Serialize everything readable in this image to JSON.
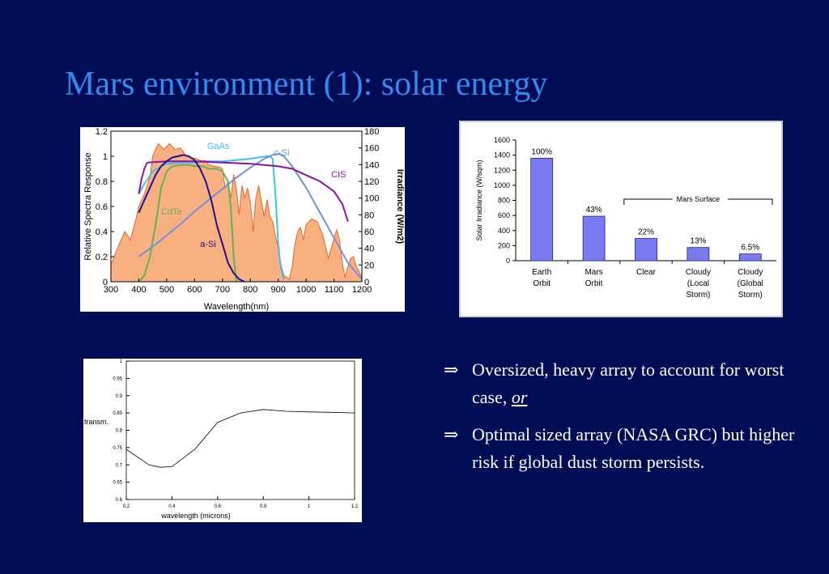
{
  "title": "Mars environment (1): solar energy",
  "bullets": [
    {
      "symbol": "⇒",
      "text": "Oversized, heavy array to account for worst case, ",
      "emphasis": "or"
    },
    {
      "symbol": "⇒",
      "text": "Optimal sized array (NASA GRC) but higher risk if global dust storm persists.",
      "emphasis": ""
    }
  ],
  "chart_data": [
    {
      "type": "line",
      "xlabel": "Wavelength(nm)",
      "ylabel": "Relative Spectra Response",
      "y2label": "Irradiance (W/m2)",
      "xlim": [
        300,
        1200
      ],
      "ylim": [
        0,
        1.2
      ],
      "y2lim": [
        0,
        180
      ],
      "xticks": [
        "300",
        "400",
        "500",
        "600",
        "700",
        "800",
        "900",
        "1000",
        "1100",
        "1200"
      ],
      "yticks": [
        "0",
        "0.2",
        "0.4",
        "0.6",
        "0.8",
        "1",
        "1.2"
      ],
      "y2ticks": [
        "0",
        "20",
        "40",
        "60",
        "80",
        "100",
        "120",
        "140",
        "160",
        "180"
      ],
      "fill_color": "#f8b080",
      "irradiance": {
        "x": [
          300,
          330,
          350,
          370,
          390,
          400,
          420,
          440,
          450,
          460,
          470,
          490,
          510,
          530,
          550,
          570,
          590,
          600,
          620,
          640,
          650,
          670,
          690,
          700,
          710,
          720,
          730,
          740,
          750,
          760,
          770,
          780,
          790,
          800,
          810,
          820,
          830,
          840,
          850,
          860,
          870,
          880,
          890,
          900,
          910,
          920,
          930,
          940,
          950,
          960,
          970,
          980,
          990,
          1000,
          1020,
          1040,
          1060,
          1080,
          1100,
          1110,
          1120,
          1130,
          1140,
          1150,
          1160,
          1170,
          1180,
          1190,
          1200
        ],
        "y": [
          20,
          45,
          60,
          50,
          75,
          90,
          105,
          125,
          150,
          158,
          165,
          158,
          165,
          158,
          160,
          150,
          148,
          148,
          145,
          145,
          140,
          138,
          137,
          135,
          112,
          120,
          100,
          128,
          110,
          80,
          115,
          100,
          112,
          95,
          60,
          100,
          115,
          95,
          78,
          98,
          78,
          72,
          55,
          40,
          20,
          8,
          5,
          3,
          18,
          45,
          60,
          65,
          50,
          68,
          75,
          72,
          55,
          28,
          52,
          62,
          50,
          22,
          5,
          18,
          28,
          30,
          18,
          12,
          5
        ]
      },
      "series": [
        {
          "name": "GaAs",
          "color": "#40c0e8",
          "x": [
            400,
            420,
            450,
            480,
            500,
            550,
            600,
            650,
            700,
            750,
            800,
            830,
            860,
            870,
            880,
            890,
            900,
            910,
            920
          ],
          "y": [
            0.7,
            0.78,
            0.88,
            0.92,
            0.94,
            0.95,
            0.95,
            0.96,
            0.96,
            0.97,
            0.98,
            0.99,
            1.0,
            1.0,
            0.98,
            0.7,
            0.3,
            0.1,
            0.02
          ]
        },
        {
          "name": "c-Si",
          "color": "#7090e0",
          "x": [
            400,
            450,
            500,
            550,
            600,
            650,
            700,
            750,
            800,
            850,
            880,
            900,
            920,
            950,
            1000,
            1050,
            1100,
            1150,
            1200
          ],
          "y": [
            0.2,
            0.28,
            0.37,
            0.46,
            0.56,
            0.65,
            0.74,
            0.83,
            0.91,
            0.98,
            1.01,
            1.02,
            1.0,
            0.92,
            0.75,
            0.55,
            0.35,
            0.15,
            0.02
          ]
        },
        {
          "name": "CIS",
          "color": "#9010a8",
          "x": [
            400,
            410,
            420,
            430,
            500,
            600,
            700,
            800,
            850,
            900,
            950,
            1000,
            1050,
            1100,
            1130,
            1150
          ],
          "y": [
            0.7,
            0.82,
            0.9,
            0.95,
            0.96,
            0.96,
            0.95,
            0.94,
            0.93,
            0.92,
            0.9,
            0.85,
            0.8,
            0.72,
            0.62,
            0.48
          ]
        },
        {
          "name": "CdTe",
          "color": "#60b060",
          "x": [
            400,
            420,
            440,
            460,
            470,
            480,
            500,
            520,
            550,
            580,
            600,
            630,
            650,
            680,
            700,
            720,
            730,
            740,
            750
          ],
          "y": [
            0.0,
            0.05,
            0.2,
            0.45,
            0.6,
            0.75,
            0.88,
            0.92,
            0.93,
            0.93,
            0.92,
            0.92,
            0.9,
            0.9,
            0.88,
            0.8,
            0.6,
            0.2,
            0.0
          ]
        },
        {
          "name": "a-Si",
          "color": "#201090",
          "x": [
            400,
            420,
            440,
            460,
            480,
            500,
            520,
            540,
            560,
            580,
            600,
            620,
            640,
            660,
            680,
            700,
            720,
            740,
            760,
            780
          ],
          "y": [
            0.55,
            0.65,
            0.75,
            0.85,
            0.92,
            0.96,
            0.99,
            1.0,
            1.01,
            1.0,
            0.97,
            0.9,
            0.8,
            0.65,
            0.45,
            0.3,
            0.15,
            0.07,
            0.02,
            0.0
          ]
        }
      ]
    },
    {
      "type": "bar",
      "ylabel": "Solar Irradiance (W/sqm)",
      "ylim": [
        0,
        1600
      ],
      "yticks": [
        "0",
        "200",
        "400",
        "600",
        "800",
        "1000",
        "1200",
        "1400",
        "1600"
      ],
      "categories": [
        [
          "Earth",
          "Orbit"
        ],
        [
          "Mars",
          "Orbit"
        ],
        [
          "Clear"
        ],
        [
          "Cloudy",
          "(Local",
          "Storm)"
        ],
        [
          "Cloudy",
          "(Global",
          "Storm)"
        ]
      ],
      "values": [
        1360,
        590,
        295,
        175,
        90
      ],
      "labels": [
        "100%",
        "43%",
        "22%",
        "13%",
        "6.5%"
      ],
      "group_label": "Mars Surface",
      "bar_color": "#7a7af0"
    },
    {
      "type": "line",
      "xlabel": "wavelength (microns)",
      "ylabel": "transm.",
      "xlim": [
        0.2,
        1.2
      ],
      "ylim": [
        0.6,
        1.0
      ],
      "xticks": [
        "0.2",
        "0.4",
        "0.6",
        "0.8",
        "1",
        "1.2"
      ],
      "yticks": [
        "0.6",
        "0.65",
        "0.7",
        "0.75",
        "0.8",
        "0.85",
        "0.9",
        "0.95",
        "1"
      ],
      "x": [
        0.2,
        0.3,
        0.35,
        0.4,
        0.5,
        0.6,
        0.7,
        0.8,
        0.9,
        1.0,
        1.1,
        1.2
      ],
      "y": [
        0.745,
        0.7,
        0.693,
        0.695,
        0.745,
        0.823,
        0.85,
        0.86,
        0.855,
        0.853,
        0.852,
        0.85
      ]
    }
  ]
}
